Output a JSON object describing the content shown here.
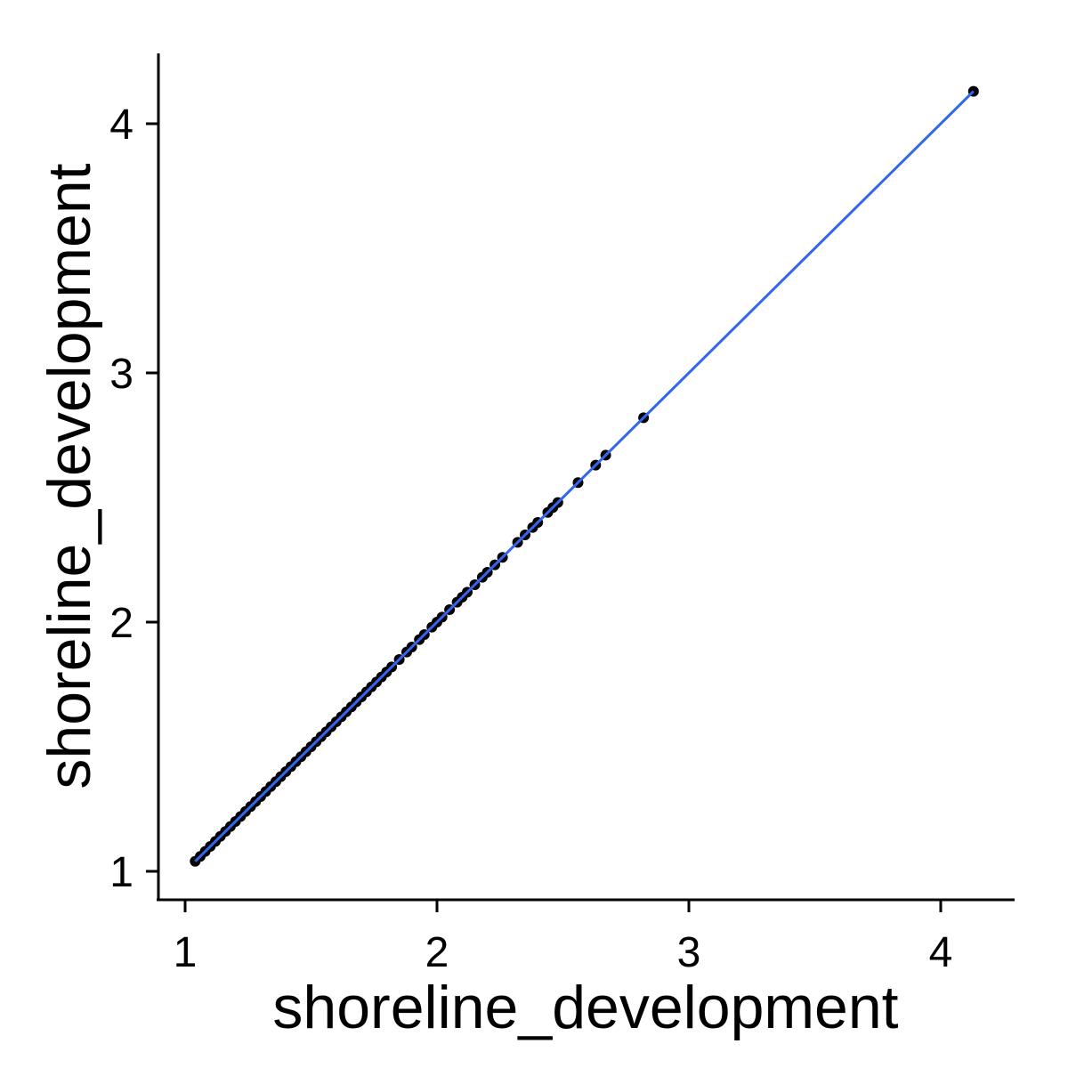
{
  "chart_data": {
    "type": "scatter",
    "xlabel": "shoreline_development",
    "ylabel": "shoreline_development",
    "xlim": [
      0.9,
      4.3
    ],
    "ylim": [
      0.89,
      4.28
    ],
    "x_ticks": [
      1,
      2,
      3,
      4
    ],
    "y_ticks": [
      1,
      2,
      3,
      4
    ],
    "x_tick_labels": [
      "1",
      "2",
      "3",
      "4"
    ],
    "y_tick_labels": [
      "1",
      "2",
      "3",
      "4"
    ],
    "grid": false,
    "legend": "none",
    "point_color": "#000000",
    "line_color": "#3366ee",
    "fit_line": {
      "x": [
        1.04,
        4.13
      ],
      "y": [
        1.04,
        4.13
      ]
    },
    "series": [
      {
        "x": [
          1.04,
          1.06,
          1.08,
          1.1,
          1.12,
          1.14,
          1.16,
          1.18,
          1.2,
          1.22,
          1.24,
          1.26,
          1.28,
          1.3,
          1.32,
          1.34,
          1.36,
          1.38,
          1.4,
          1.42,
          1.44,
          1.46,
          1.48,
          1.5,
          1.52,
          1.54,
          1.56,
          1.58,
          1.6,
          1.62,
          1.64,
          1.66,
          1.68,
          1.7,
          1.72,
          1.74,
          1.76,
          1.78,
          1.8,
          1.82,
          1.85,
          1.88,
          1.9,
          1.93,
          1.95,
          1.98,
          2.0,
          2.02,
          2.05,
          2.08,
          2.1,
          2.12,
          2.15,
          2.18,
          2.2,
          2.23,
          2.26,
          2.32,
          2.35,
          2.38,
          2.4,
          2.44,
          2.46,
          2.48,
          2.56,
          2.63,
          2.67,
          2.82,
          4.13
        ],
        "y": [
          1.04,
          1.06,
          1.08,
          1.1,
          1.12,
          1.14,
          1.16,
          1.18,
          1.2,
          1.22,
          1.24,
          1.26,
          1.28,
          1.3,
          1.32,
          1.34,
          1.36,
          1.38,
          1.4,
          1.42,
          1.44,
          1.46,
          1.48,
          1.5,
          1.52,
          1.54,
          1.56,
          1.58,
          1.6,
          1.62,
          1.64,
          1.66,
          1.68,
          1.7,
          1.72,
          1.74,
          1.76,
          1.78,
          1.8,
          1.82,
          1.85,
          1.88,
          1.9,
          1.93,
          1.95,
          1.98,
          2.0,
          2.02,
          2.05,
          2.08,
          2.1,
          2.12,
          2.15,
          2.18,
          2.2,
          2.23,
          2.26,
          2.32,
          2.35,
          2.38,
          2.4,
          2.44,
          2.46,
          2.48,
          2.56,
          2.63,
          2.67,
          2.82,
          4.13
        ]
      }
    ]
  }
}
